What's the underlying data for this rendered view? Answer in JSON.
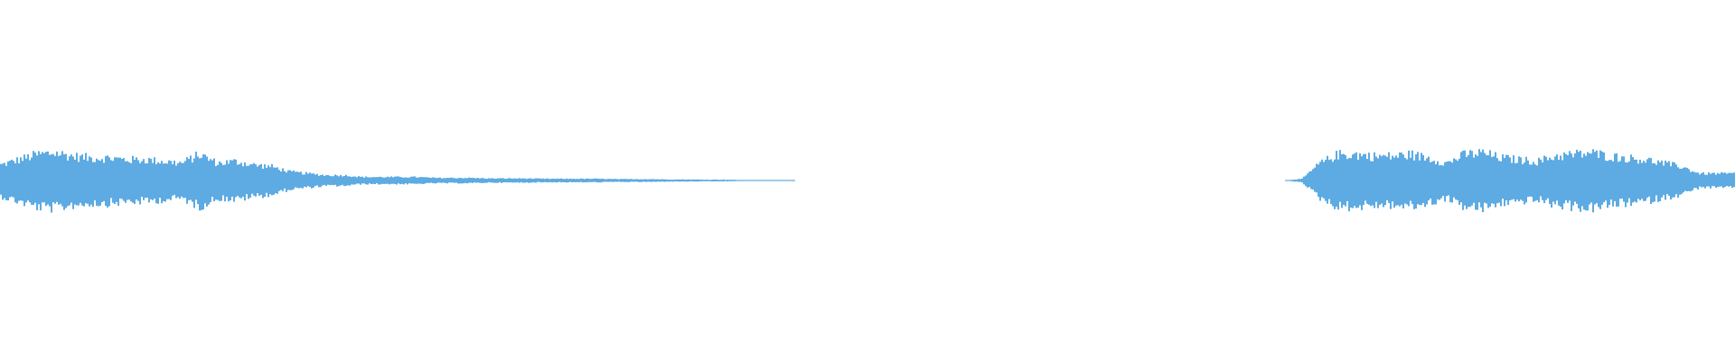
{
  "chart_data": {
    "type": "area",
    "description_kind": "audio-waveform",
    "color": "#5dabe2",
    "background": "#ffffff",
    "grid": false,
    "axes_visible": false,
    "ylim": [
      -1,
      1
    ],
    "envelope": [
      0.09,
      0.12,
      0.15,
      0.16,
      0.14,
      0.13,
      0.13,
      0.12,
      0.12,
      0.11,
      0.1,
      0.15,
      0.1,
      0.11,
      0.09,
      0.08,
      0.05,
      0.04,
      0.03,
      0.03,
      0.02,
      0.02,
      0.02,
      0.02,
      0.015,
      0.015,
      0.015,
      0.012,
      0.012,
      0.012,
      0.01,
      0.01,
      0.01,
      0.01,
      0.008,
      0.008,
      0.008,
      0.006,
      0.006,
      0.005,
      0.005,
      0.003,
      0.002,
      0.002,
      0,
      0,
      0,
      0,
      0,
      0,
      0,
      0,
      0,
      0,
      0,
      0,
      0,
      0,
      0,
      0,
      0,
      0,
      0,
      0,
      0,
      0,
      0,
      0,
      0,
      0,
      0,
      0,
      0.01,
      0.1,
      0.15,
      0.15,
      0.14,
      0.14,
      0.15,
      0.13,
      0.1,
      0.15,
      0.16,
      0.13,
      0.12,
      0.11,
      0.14,
      0.15,
      0.16,
      0.14,
      0.13,
      0.12,
      0.1,
      0.08,
      0.04,
      0.04,
      0.04
    ]
  }
}
